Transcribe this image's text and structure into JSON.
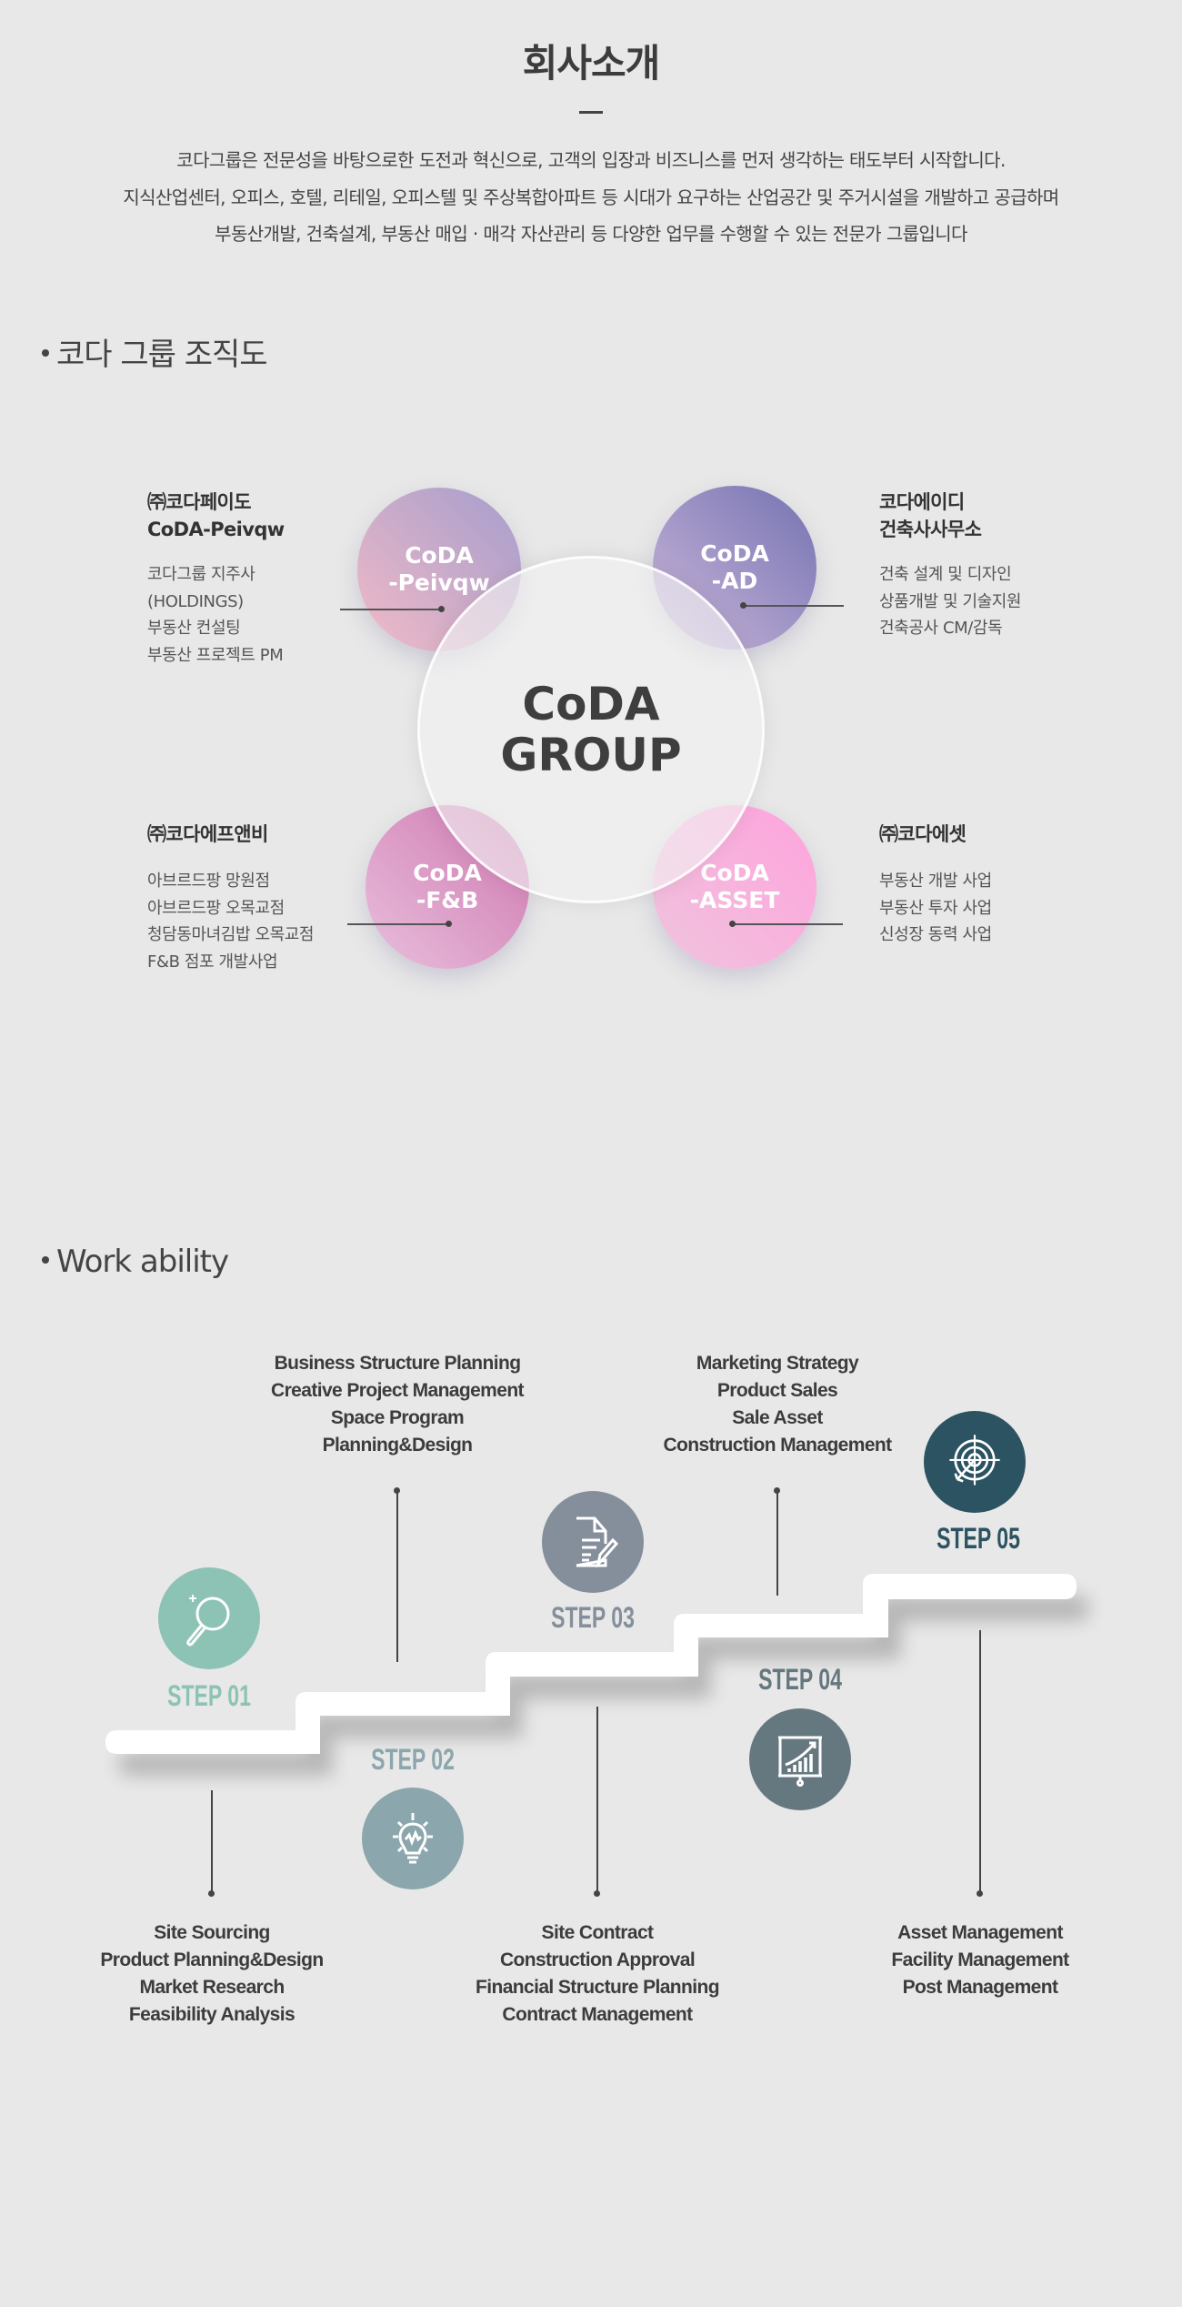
{
  "header": {
    "title": "회사소개",
    "intro": [
      "코다그룹은 전문성을 바탕으로한 도전과 혁신으로, 고객의 입장과 비즈니스를 먼저 생각하는 태도부터 시작합니다.",
      "지식산업센터, 오피스, 호텔, 리테일, 오피스텔 및 주상복합아파트 등 시대가 요구하는 산업공간 및 주거시설을 개발하고 공급하며",
      "부동산개발, 건축설계, 부동산 매입 · 매각 자산관리 등 다양한 업무를 수행할 수 있는 전문가 그룹입니다"
    ]
  },
  "org": {
    "section_title": "코다 그룹 조직도",
    "center": [
      "CoDA",
      "GROUP"
    ],
    "companies": [
      {
        "circle": [
          "CoDA",
          "-Peivqw"
        ],
        "title": [
          "㈜코다페이도",
          "CoDA-Peivqw"
        ],
        "desc": [
          "코다그룹 지주사",
          "(HOLDINGS)",
          "부동산 컨설팅",
          "부동산 프로젝트 PM"
        ],
        "colors": [
          "#f3bac6",
          "#a49dcd"
        ]
      },
      {
        "circle": [
          "CoDA",
          "-AD"
        ],
        "title": [
          "코다에이디",
          "건축사사무소"
        ],
        "desc": [
          "건축 설계 및 디자인",
          "상품개발 및 기술지원",
          "건축공사 CM/감독"
        ],
        "colors": [
          "#cdb7da",
          "#7473b2"
        ]
      },
      {
        "circle": [
          "CoDA",
          "-F&B"
        ],
        "title": [
          "㈜코다에프앤비"
        ],
        "desc": [
          "아브르드팡 망원점",
          "아브르드팡 오목교점",
          "청담동마녀김밥 오목교점",
          "F&B 점포 개발사업"
        ],
        "colors": [
          "#e8bfdc",
          "#cf77b0"
        ]
      },
      {
        "circle": [
          "CoDA",
          "-ASSET"
        ],
        "title": [
          "㈜코다에셋"
        ],
        "desc": [
          "부동산 개발 사업",
          "부동산 투자 사업",
          "신성장 동력 사업"
        ],
        "colors": [
          "#efc4dd",
          "#ffa3dd"
        ]
      }
    ]
  },
  "work": {
    "section_title": "Work ability",
    "steps": [
      {
        "label": "STEP 01",
        "icon": "magnifier-icon",
        "color": "#8cc3b4",
        "items": [
          "Site Sourcing",
          "Product Planning&Design",
          "Market Research",
          "Feasibility Analysis"
        ]
      },
      {
        "label": "STEP 02",
        "icon": "lightbulb-icon",
        "color": "#8ba6ac",
        "items": [
          "Business Structure Planning",
          "Creative Project Management",
          "Space Program",
          "Planning&Design"
        ]
      },
      {
        "label": "STEP 03",
        "icon": "document-pen-icon",
        "color": "#858f9b",
        "items": [
          "Site Contract",
          "Construction Approval",
          "Financial Structure Planning",
          "Contract Management"
        ]
      },
      {
        "label": "STEP 04",
        "icon": "presentation-chart-icon",
        "color": "#66787f",
        "items": [
          "Marketing Strategy",
          "Product Sales",
          "Sale Asset",
          "Construction Management"
        ]
      },
      {
        "label": "STEP 05",
        "icon": "target-icon",
        "color": "#2c5361",
        "items": [
          "Asset Management",
          "Facility Management",
          "Post Management"
        ]
      }
    ]
  }
}
